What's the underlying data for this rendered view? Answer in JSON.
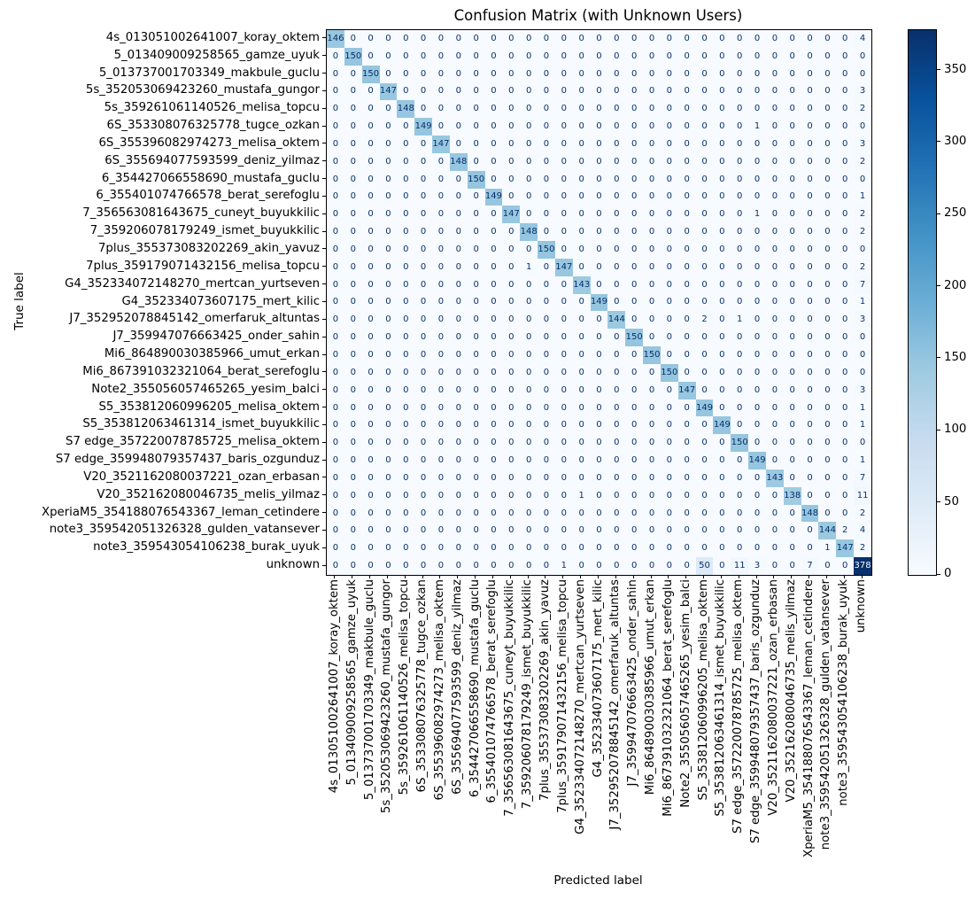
{
  "title": "Confusion Matrix (with Unknown Users)",
  "xlabel": "Predicted label",
  "ylabel": "True label",
  "chart_data": {
    "type": "heatmap",
    "title": "Confusion Matrix (with Unknown Users)",
    "xlabel": "Predicted label",
    "ylabel": "True label",
    "labels": [
      "4s_013051002641007_koray_oktem",
      "5_013409009258565_gamze_uyuk",
      "5_013737001703349_makbule_guclu",
      "5s_352053069423260_mustafa_gungor",
      "5s_359261061140526_melisa_topcu",
      "6S_353308076325778_tugce_ozkan",
      "6S_355396082974273_melisa_oktem",
      "6S_355694077593599_deniz_yilmaz",
      "6_354427066558690_mustafa_guclu",
      "6_355401074766578_berat_serefoglu",
      "7_356563081643675_cuneyt_buyukkilic",
      "7_359206078179249_ismet_buyukkilic",
      "7plus_355373083202269_akin_yavuz",
      "7plus_359179071432156_melisa_topcu",
      "G4_352334072148270_mertcan_yurtseven",
      "G4_352334073607175_mert_kilic",
      "J7_352952078845142_omerfaruk_altuntas",
      "J7_359947076663425_onder_sahin",
      "Mi6_864890030385966_umut_erkan",
      "Mi6_867391032321064_berat_serefoglu",
      "Note2_355056057465265_yesim_balci",
      "S5_353812060996205_melisa_oktem",
      "S5_353812063461314_ismet_buyukkilic",
      "S7 edge_357220078785725_melisa_oktem",
      "S7 edge_359948079357437_baris_ozgunduz",
      "V20_3521162080037221_ozan_erbasan",
      "V20_352162080046735_melis_yilmaz",
      "XperiaM5_354188076543367_leman_cetindere",
      "note3_359542051326328_gulden_vatansever",
      "note3_359543054106238_burak_uyuk",
      "unknown"
    ],
    "diagonal": [
      146,
      150,
      150,
      147,
      148,
      149,
      147,
      148,
      150,
      149,
      147,
      148,
      150,
      147,
      143,
      149,
      144,
      150,
      150,
      150,
      147,
      149,
      149,
      150,
      149,
      143,
      138,
      148,
      144,
      147,
      378
    ],
    "off_diagonal": [
      {
        "row": 0,
        "col": 30,
        "value": 4
      },
      {
        "row": 3,
        "col": 30,
        "value": 3
      },
      {
        "row": 4,
        "col": 30,
        "value": 2
      },
      {
        "row": 5,
        "col": 24,
        "value": 1
      },
      {
        "row": 6,
        "col": 30,
        "value": 3
      },
      {
        "row": 7,
        "col": 30,
        "value": 2
      },
      {
        "row": 9,
        "col": 30,
        "value": 1
      },
      {
        "row": 10,
        "col": 24,
        "value": 1
      },
      {
        "row": 10,
        "col": 30,
        "value": 2
      },
      {
        "row": 11,
        "col": 30,
        "value": 2
      },
      {
        "row": 13,
        "col": 11,
        "value": 1
      },
      {
        "row": 13,
        "col": 30,
        "value": 2
      },
      {
        "row": 14,
        "col": 30,
        "value": 7
      },
      {
        "row": 15,
        "col": 30,
        "value": 1
      },
      {
        "row": 16,
        "col": 21,
        "value": 2
      },
      {
        "row": 16,
        "col": 23,
        "value": 1
      },
      {
        "row": 16,
        "col": 30,
        "value": 3
      },
      {
        "row": 20,
        "col": 30,
        "value": 3
      },
      {
        "row": 21,
        "col": 30,
        "value": 1
      },
      {
        "row": 22,
        "col": 30,
        "value": 1
      },
      {
        "row": 24,
        "col": 30,
        "value": 1
      },
      {
        "row": 25,
        "col": 30,
        "value": 7
      },
      {
        "row": 26,
        "col": 14,
        "value": 1
      },
      {
        "row": 26,
        "col": 30,
        "value": 11
      },
      {
        "row": 27,
        "col": 30,
        "value": 2
      },
      {
        "row": 28,
        "col": 29,
        "value": 2
      },
      {
        "row": 28,
        "col": 30,
        "value": 4
      },
      {
        "row": 29,
        "col": 28,
        "value": 1
      },
      {
        "row": 29,
        "col": 30,
        "value": 2
      },
      {
        "row": 30,
        "col": 13,
        "value": 1
      },
      {
        "row": 30,
        "col": 21,
        "value": 50
      },
      {
        "row": 30,
        "col": 23,
        "value": 11
      },
      {
        "row": 30,
        "col": 24,
        "value": 3
      },
      {
        "row": 30,
        "col": 27,
        "value": 7
      }
    ],
    "vmin": 0,
    "vmax": 378,
    "colormap": "Blues",
    "colormap_stops": [
      "#f7fbff",
      "#deebf7",
      "#c6dbef",
      "#9ecae1",
      "#6baed6",
      "#4292c6",
      "#2171b5",
      "#08519c",
      "#08306b"
    ],
    "annotation_color_dark": "#08306b",
    "annotation_color_light": "#f7fbff",
    "colorbar_ticks": [
      0,
      50,
      100,
      150,
      200,
      250,
      300,
      350
    ],
    "legend_position": "right-colorbar",
    "grid": false
  }
}
